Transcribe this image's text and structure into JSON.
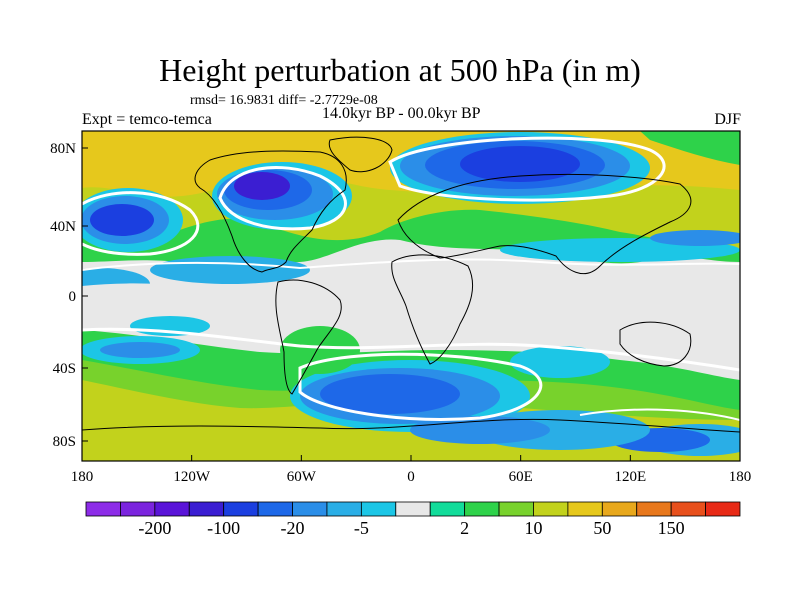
{
  "title": "Height perturbation at 500 hPa (in m)",
  "stats": "rmsd= 16.9831 diff= -2.7729e-08",
  "experiment": "Expt = temco-temca",
  "period": "14.0kyr BP - 00.0kyr BP",
  "season": "DJF",
  "y_tick_labels": [
    "80N",
    "40N",
    "0",
    "40S",
    "80S"
  ],
  "x_tick_labels": [
    "180",
    "120W",
    "60W",
    "0",
    "60E",
    "120E",
    "180"
  ],
  "colorbar": {
    "colors": [
      "#8d2ce8",
      "#7b24de",
      "#5a14d8",
      "#3b1ed2",
      "#1b3fe0",
      "#1e68e8",
      "#2b8ee8",
      "#2aaee6",
      "#1cc6e6",
      "#e8e8e8",
      "#12dc9a",
      "#2ed24a",
      "#78d22c",
      "#c2d21c",
      "#e6c81c",
      "#e8a81c",
      "#e8781c",
      "#e8501c",
      "#e82a16"
    ],
    "labels": [
      "-200",
      "-100",
      "-20",
      "-5",
      "2",
      "10",
      "50",
      "150"
    ],
    "label_boundary_index": [
      1,
      3,
      5,
      7,
      10,
      12,
      14,
      16
    ]
  },
  "field_colors": {
    "neutral": "#e8e8e8",
    "green": "#2ed24a",
    "lightgreen": "#78d22c",
    "yellow": "#c2d21c",
    "orange": "#e6c81c",
    "cyan": "#1cc6e6",
    "lightblue": "#2aaee6",
    "blue": "#1e68e8",
    "darkblue": "#1b3fe0",
    "deepblue": "#3b1ed2",
    "teal": "#12dc9a"
  }
}
